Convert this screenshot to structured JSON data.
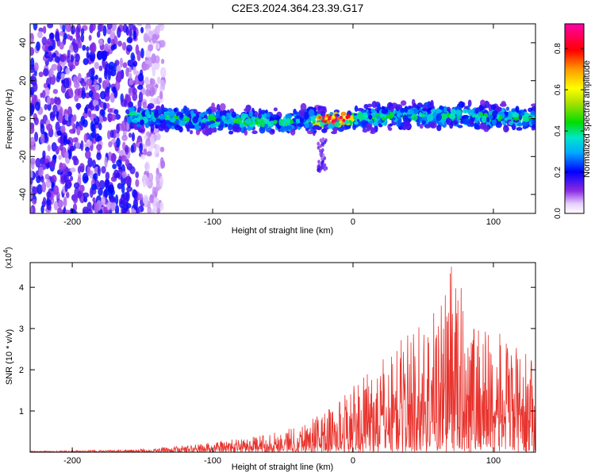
{
  "title": "C2E3.2024.364.23.39.G17",
  "chart_data": [
    {
      "type": "heatmap",
      "name": "spectrogram",
      "xlabel": "Height of straight line (km)",
      "ylabel": "Frequency (Hz)",
      "xlim": [
        -230,
        130
      ],
      "ylim": [
        -50,
        50
      ],
      "xticks": [
        -200,
        -100,
        0,
        100
      ],
      "yticks": [
        -40,
        -20,
        0,
        20,
        40
      ],
      "colorbar": {
        "label": "Normalized spectral amplitude",
        "range": [
          0.0,
          0.92
        ],
        "ticks": [
          "0.0",
          "0.2",
          "0.4",
          "0.6",
          "0.8"
        ],
        "tick_values": [
          0.0,
          0.2,
          0.4,
          0.6,
          0.8
        ],
        "colormap": "rainbow"
      },
      "features": [
        {
          "description": "broadband low amplitude noise",
          "x_range": [
            -230,
            -135
          ],
          "y_range": [
            -50,
            50
          ],
          "amplitude": 0.1
        },
        {
          "description": "narrow signal band near 0 Hz",
          "x_range": [
            -160,
            130
          ],
          "y_center": 0,
          "y_halfwidth": 8,
          "amplitude": 0.3
        },
        {
          "description": "peak amplitude region",
          "x_range": [
            -30,
            0
          ],
          "y_center": 0,
          "amplitude": 0.9
        }
      ]
    },
    {
      "type": "line",
      "name": "snr",
      "xlabel": "Height of straight line (km)",
      "ylabel": "SNR (10 * v/v)",
      "scale_label": "(x10",
      "scale_exponent": "4",
      "color": "#e8342e",
      "xlim": [
        -230,
        130
      ],
      "ylim": [
        0,
        4.6
      ],
      "xticks": [
        -200,
        -100,
        0,
        100
      ],
      "yticks": [
        1,
        2,
        3,
        4
      ],
      "envelope_x": [
        -230,
        -200,
        -160,
        -140,
        -110,
        -90,
        -70,
        -50,
        -35,
        -20,
        -10,
        0,
        10,
        25,
        40,
        55,
        70,
        85,
        100,
        115,
        130
      ],
      "envelope_y": [
        0.03,
        0.04,
        0.06,
        0.1,
        0.2,
        0.3,
        0.38,
        0.55,
        0.75,
        1.0,
        1.3,
        1.6,
        1.9,
        2.4,
        3.0,
        3.4,
        4.5,
        3.4,
        3.0,
        2.6,
        2.2
      ],
      "peak": {
        "x": 70,
        "y": 4.5
      }
    }
  ]
}
